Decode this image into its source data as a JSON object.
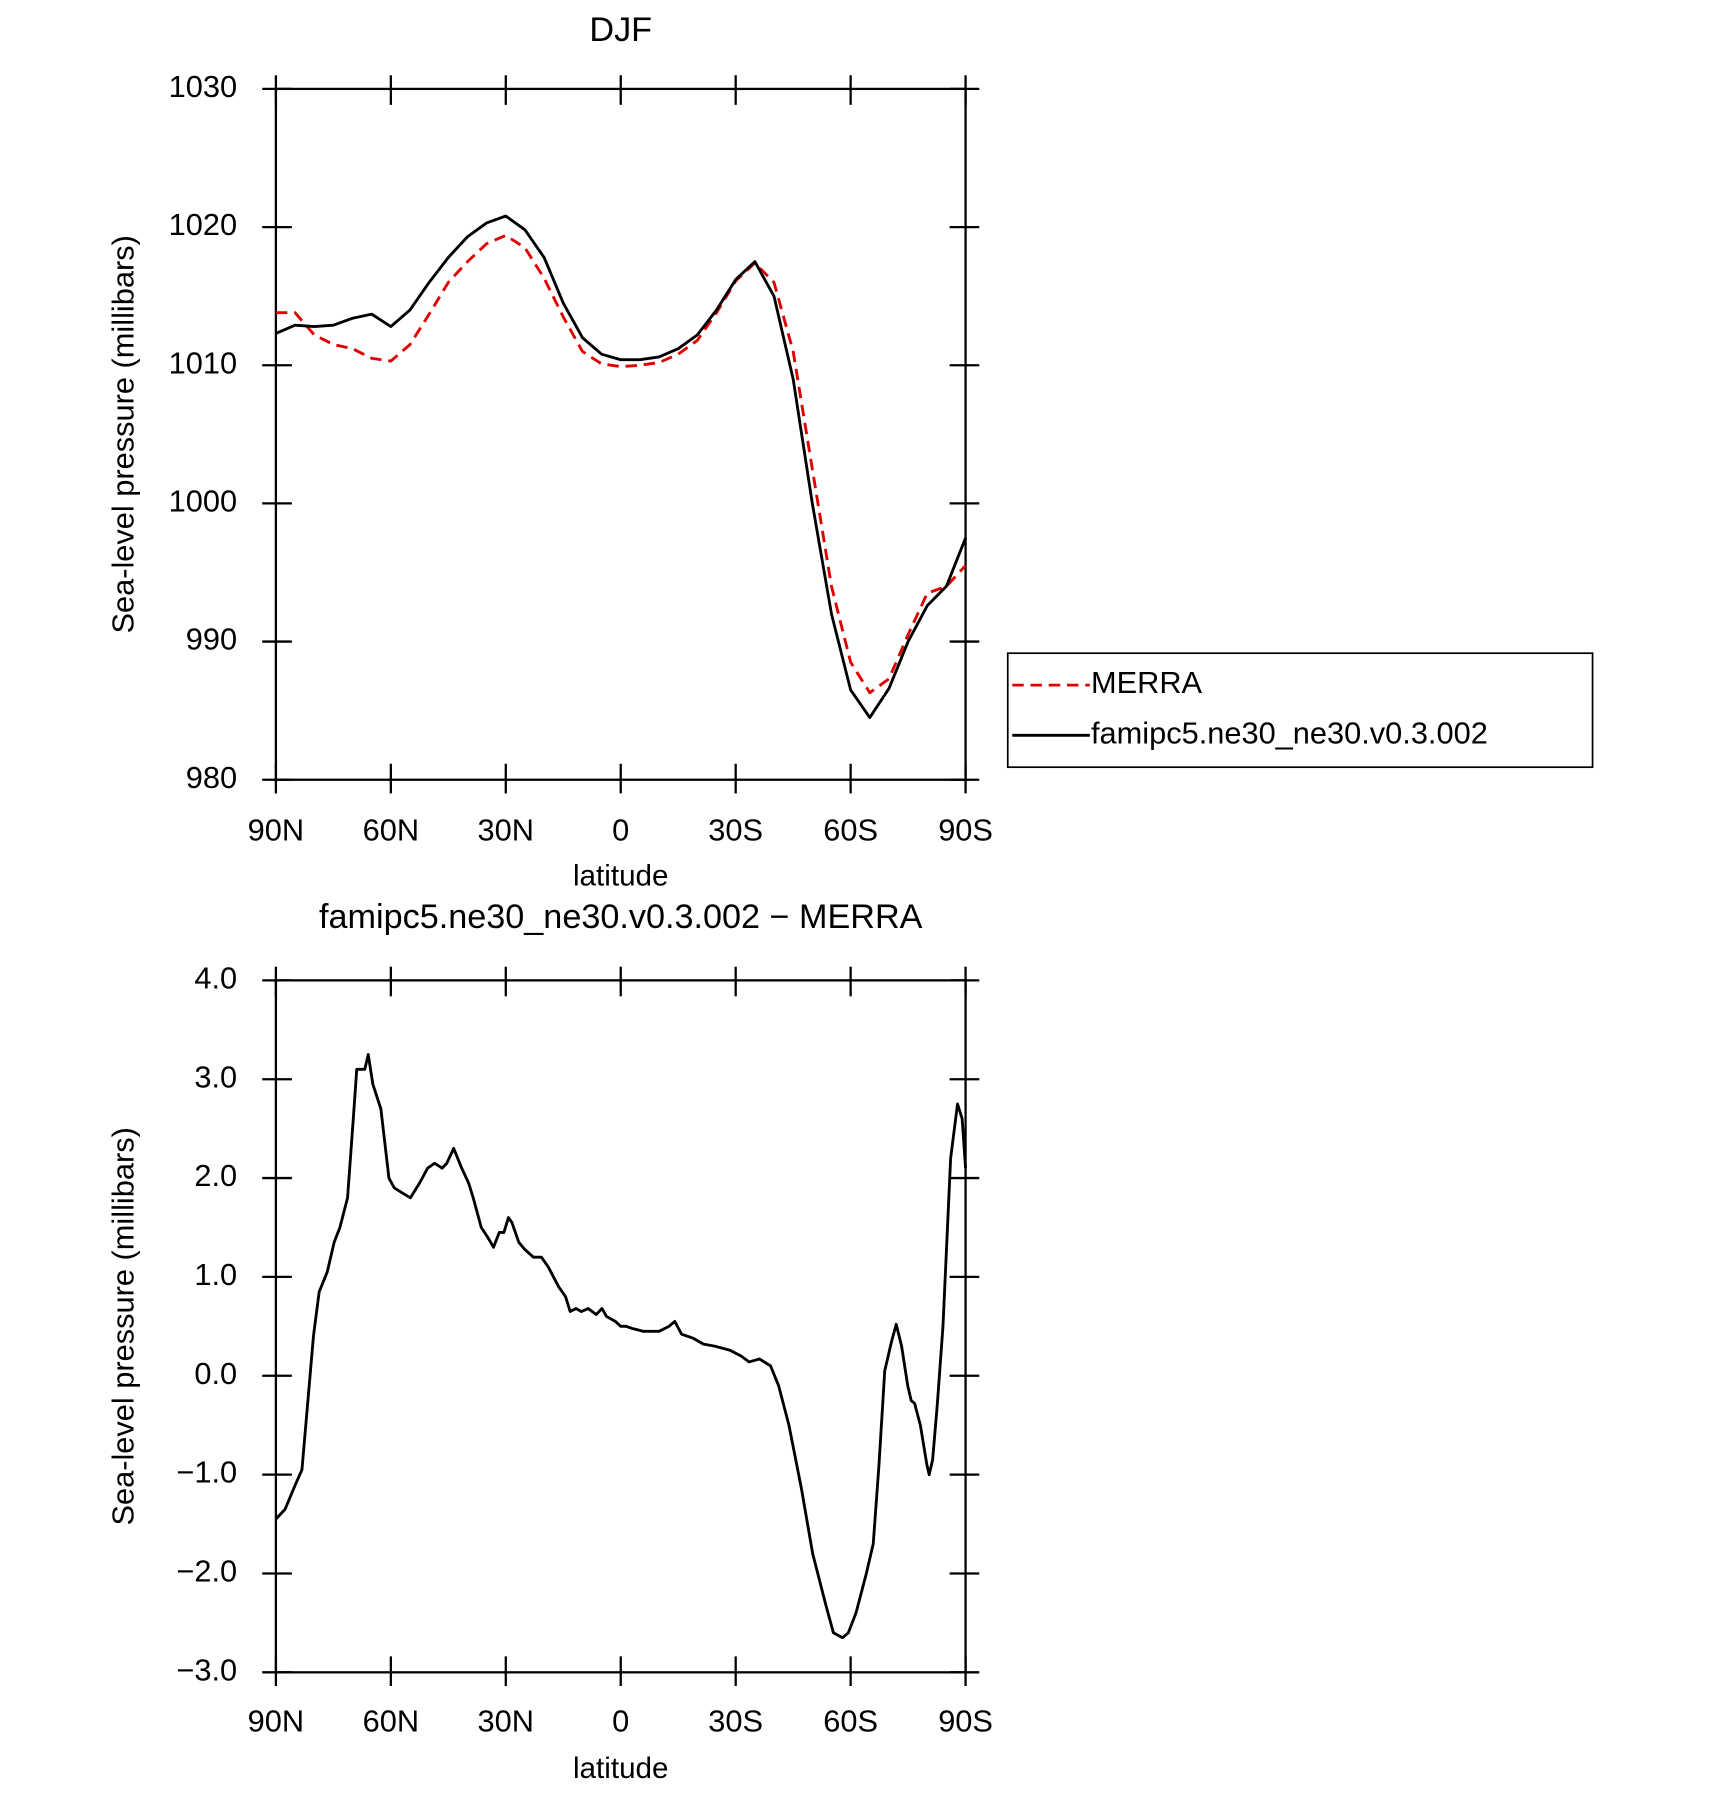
{
  "chart_data": [
    {
      "type": "line",
      "title": "DJF",
      "xlabel": "latitude",
      "ylabel": "Sea-level pressure (millibars)",
      "x": [
        90,
        85,
        80,
        75,
        70,
        65,
        60,
        55,
        50,
        45,
        40,
        35,
        30,
        25,
        20,
        15,
        10,
        5,
        0,
        -5,
        -10,
        -15,
        -20,
        -25,
        -30,
        -35,
        -40,
        -45,
        -50,
        -55,
        -60,
        -65,
        -70,
        -75,
        -80,
        -85,
        -90
      ],
      "series": [
        {
          "name": "MERRA",
          "color": "#e00000",
          "linestyle": "dashed",
          "values": [
            1013.8,
            1013.8,
            1012.2,
            1011.5,
            1011.2,
            1010.5,
            1010.3,
            1011.5,
            1013.7,
            1016,
            1017.5,
            1018.8,
            1019.4,
            1018.5,
            1016.3,
            1013.5,
            1011,
            1010.1,
            1009.9,
            1010,
            1010.2,
            1010.8,
            1011.8,
            1013.8,
            1016.1,
            1017.4,
            1016,
            1011,
            1002.5,
            994,
            988.5,
            986.3,
            987.3,
            990.5,
            993.5,
            994,
            995.5
          ]
        },
        {
          "name": "famipc5.ne30_ne30.v0.3.002",
          "color": "#000000",
          "linestyle": "solid",
          "values": [
            1012.3,
            1012.9,
            1012.8,
            1012.9,
            1013.4,
            1013.7,
            1012.8,
            1014,
            1016,
            1017.8,
            1019.3,
            1020.3,
            1020.8,
            1019.8,
            1017.8,
            1014.5,
            1012,
            1010.8,
            1010.4,
            1010.4,
            1010.6,
            1011.2,
            1012.2,
            1014,
            1016.2,
            1017.5,
            1015,
            1009,
            1000,
            992,
            986.5,
            984.5,
            986.6,
            990,
            992.6,
            994,
            997.5
          ]
        }
      ],
      "xlim": [
        90,
        -90
      ],
      "xticks": [
        {
          "value": 90,
          "label": "90N"
        },
        {
          "value": 60,
          "label": "60N"
        },
        {
          "value": 30,
          "label": "30N"
        },
        0,
        {
          "value": -30,
          "label": "30S"
        },
        {
          "value": -60,
          "label": "60S"
        },
        {
          "value": -90,
          "label": "90S"
        }
      ],
      "ylim": [
        980,
        1030
      ],
      "yticks": [
        980,
        990,
        1000,
        1010,
        1020,
        1030
      ],
      "legend": "right"
    },
    {
      "type": "line",
      "title": "famipc5.ne30_ne30.v0.3.002 − MERRA",
      "xlabel": "latitude",
      "ylabel": "Sea-level pressure (millibars)",
      "x": [
        90,
        87.6,
        84.9,
        83.2,
        80.2,
        78.7,
        76.6,
        74.8,
        73.3,
        71.3,
        69.8,
        68.9,
        68,
        66.8,
        65.9,
        64.7,
        62.6,
        60.5,
        59.1,
        57,
        54.9,
        52.5,
        50.4,
        48.6,
        46.6,
        45.4,
        43.6,
        41.5,
        39.7,
        38.5,
        36.4,
        34.7,
        33.2,
        31.7,
        30.5,
        29.3,
        28.4,
        26.6,
        25.1,
        22.8,
        20.7,
        18.9,
        16.2,
        14.4,
        13.2,
        11.7,
        10.3,
        8.5,
        6.4,
        4.9,
        3.7,
        1.4,
        0,
        -1.4,
        -2.9,
        -5.8,
        -10,
        -12.6,
        -14.1,
        -15.9,
        -18.9,
        -21.6,
        -24.5,
        -28.4,
        -31.4,
        -33.5,
        -36.2,
        -39.1,
        -41.2,
        -43.9,
        -47.2,
        -50.1,
        -53.4,
        -55.5,
        -57.9,
        -59.4,
        -61.4,
        -64.1,
        -65.9,
        -67.4,
        -68.9,
        -70.7,
        -71.9,
        -73.3,
        -74.9,
        -75.8,
        -76.7,
        -78.2,
        -79.9,
        -80.5,
        -81.4,
        -82.6,
        -84.1,
        -86.1,
        -87.9,
        -89.1,
        -90
      ],
      "values": [
        -1.45,
        -1.35,
        -1.1,
        -0.95,
        0.4,
        0.85,
        1.05,
        1.35,
        1.5,
        1.8,
        2.6,
        3.1,
        3.1,
        3.1,
        3.25,
        2.95,
        2.7,
        2.0,
        1.9,
        1.85,
        1.8,
        1.95,
        2.1,
        2.15,
        2.1,
        2.15,
        2.3,
        2.1,
        1.95,
        1.8,
        1.5,
        1.4,
        1.3,
        1.45,
        1.45,
        1.6,
        1.55,
        1.35,
        1.28,
        1.2,
        1.2,
        1.1,
        0.9,
        0.8,
        0.65,
        0.68,
        0.65,
        0.68,
        0.62,
        0.68,
        0.6,
        0.55,
        0.5,
        0.5,
        0.48,
        0.45,
        0.45,
        0.5,
        0.55,
        0.42,
        0.38,
        0.32,
        0.3,
        0.26,
        0.2,
        0.14,
        0.17,
        0.1,
        -0.1,
        -0.5,
        -1.15,
        -1.8,
        -2.3,
        -2.6,
        -2.65,
        -2.6,
        -2.4,
        -2.0,
        -1.7,
        -0.9,
        0.05,
        0.35,
        0.52,
        0.3,
        -0.1,
        -0.25,
        -0.28,
        -0.5,
        -0.9,
        -1.0,
        -0.85,
        -0.3,
        0.5,
        2.2,
        2.75,
        2.6,
        2.1
      ],
      "color": "#000000",
      "xlim": [
        90,
        -90
      ],
      "xticks": [
        {
          "value": 90,
          "label": "90N"
        },
        {
          "value": 60,
          "label": "60N"
        },
        {
          "value": 30,
          "label": "30N"
        },
        0,
        {
          "value": -30,
          "label": "30S"
        },
        {
          "value": -60,
          "label": "60S"
        },
        {
          "value": -90,
          "label": "90S"
        }
      ],
      "ylim": [
        -3,
        4
      ],
      "yticks": [
        {
          "value": -3,
          "label": "−3.0"
        },
        {
          "value": -2,
          "label": "−2.0"
        },
        {
          "value": -1,
          "label": "−1.0"
        },
        {
          "value": 0,
          "label": "0.0"
        },
        {
          "value": 1,
          "label": "1.0"
        },
        {
          "value": 2,
          "label": "2.0"
        },
        {
          "value": 3,
          "label": "3.0"
        },
        {
          "value": 4,
          "label": "4.0"
        }
      ]
    }
  ]
}
